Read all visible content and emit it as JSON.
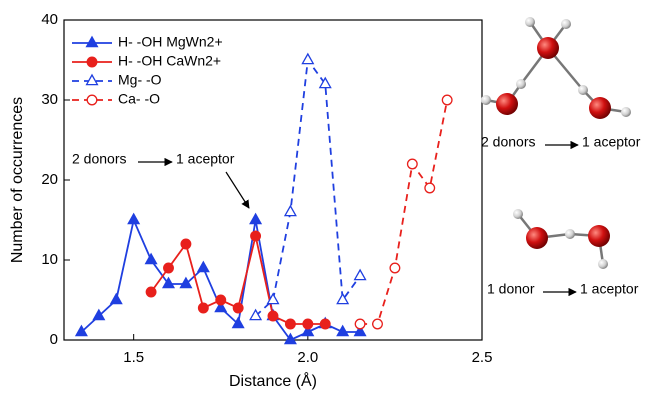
{
  "chart_data": {
    "type": "line",
    "x_label": "Distance (Å)",
    "y_label": "Number of occurrences",
    "xlim": [
      1.3,
      2.5
    ],
    "xticks": [
      1.5,
      {
        "value": 2,
        "label": "2.0"
      },
      2.5
    ],
    "ylim": [
      0,
      40
    ],
    "yticks": [
      0,
      10,
      20,
      30,
      40
    ],
    "legend": "upper left",
    "annotation": {
      "left": "2 donors",
      "right": "1 aceptor"
    },
    "series": [
      {
        "name": "H- -OH MgWn2+",
        "color": "#1f3fe0",
        "marker": "triangle",
        "filled": true,
        "dashed": false,
        "x": [
          1.35,
          1.4,
          1.45,
          1.5,
          1.55,
          1.6,
          1.65,
          1.7,
          1.75,
          1.8,
          1.85,
          1.9,
          1.95,
          2.0,
          2.05,
          2.1,
          2.15
        ],
        "values": [
          1,
          3,
          5,
          15,
          10,
          7,
          7,
          9,
          4,
          2,
          15,
          3,
          0,
          1,
          2,
          1,
          1
        ]
      },
      {
        "name": "H- -OH CaWn2+",
        "color": "#e8201c",
        "marker": "circle",
        "filled": true,
        "dashed": false,
        "x": [
          1.55,
          1.6,
          1.65,
          1.7,
          1.75,
          1.8,
          1.85,
          1.9,
          1.95,
          2.0,
          2.05
        ],
        "values": [
          6,
          9,
          12,
          4,
          5,
          4,
          13,
          3,
          2,
          2,
          2
        ]
      },
      {
        "name": "Mg- -O",
        "color": "#1f3fe0",
        "marker": "triangle",
        "filled": false,
        "dashed": true,
        "x": [
          1.85,
          1.9,
          1.95,
          2.0,
          2.05,
          2.1,
          2.15
        ],
        "values": [
          3,
          5,
          16,
          35,
          32,
          5,
          8
        ]
      },
      {
        "name": "Ca- -O",
        "color": "#e8201c",
        "marker": "circle",
        "filled": false,
        "dashed": true,
        "x": [
          2.15,
          2.2,
          2.25,
          2.3,
          2.35,
          2.4
        ],
        "values": [
          2,
          2,
          9,
          22,
          19,
          30
        ]
      }
    ]
  },
  "side_panels": [
    {
      "left": "2 donors",
      "right": "1 aceptor"
    },
    {
      "left": "1 donor",
      "right": "1 aceptor"
    }
  ]
}
